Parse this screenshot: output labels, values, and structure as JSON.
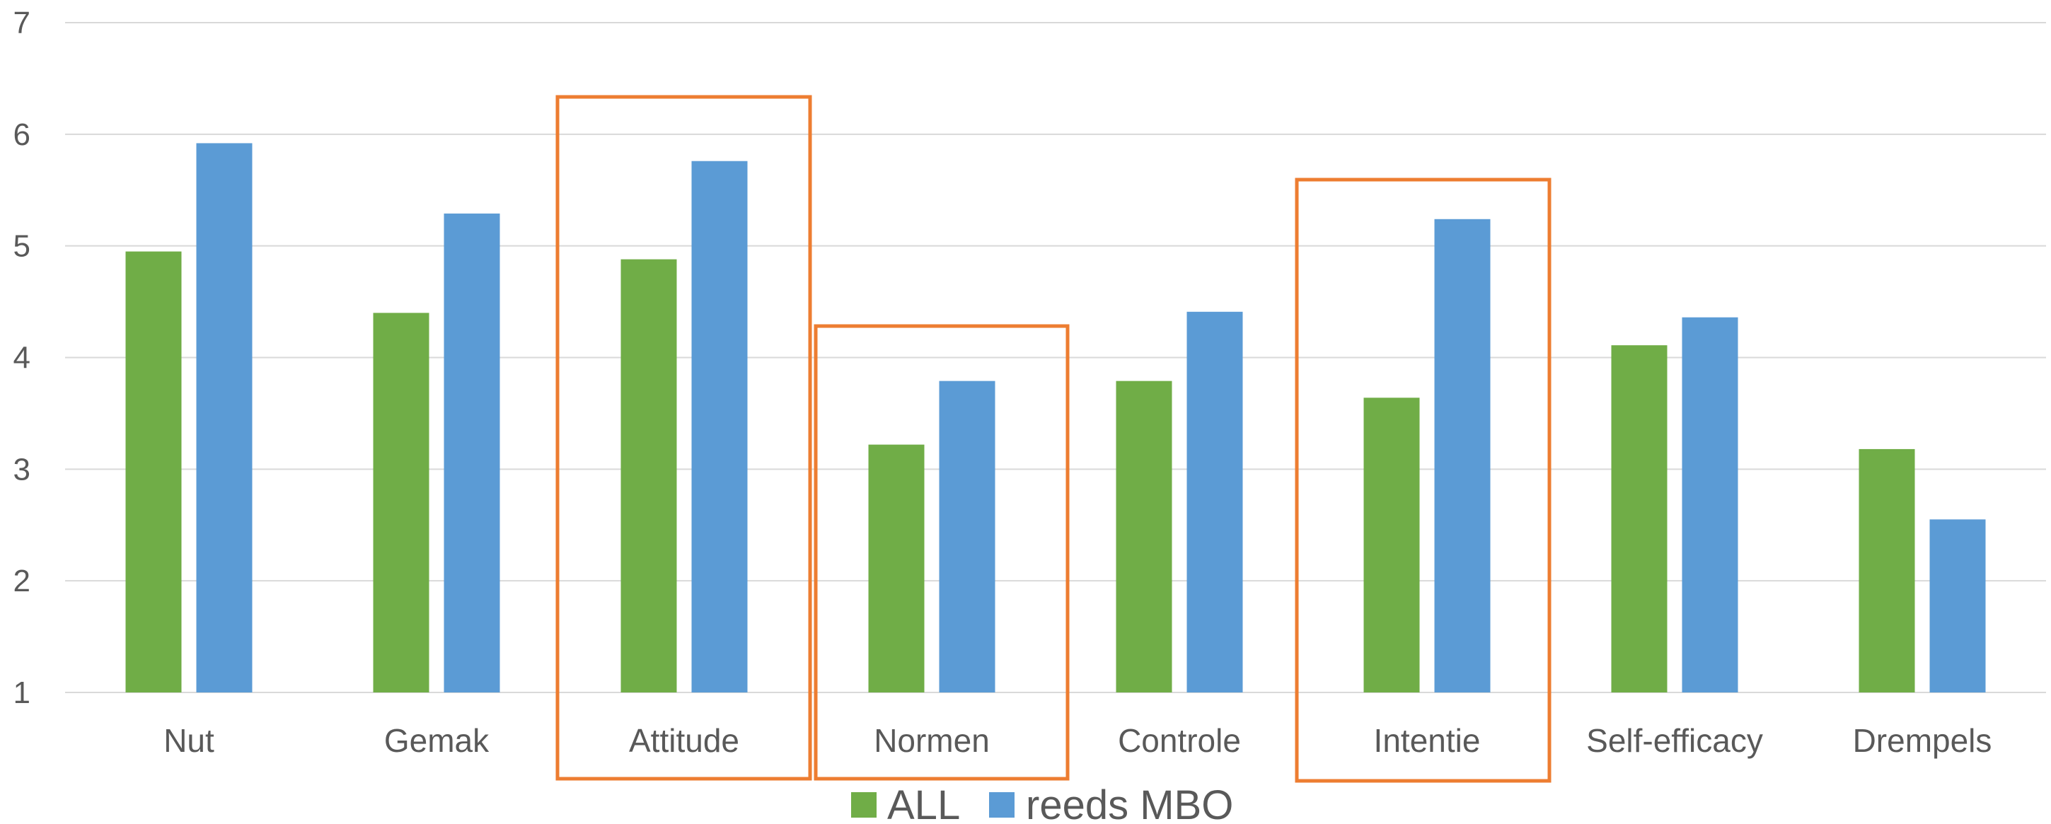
{
  "chart_data": {
    "type": "bar",
    "categories": [
      "Nut",
      "Gemak",
      "Attitude",
      "Normen",
      "Controle",
      "Intentie",
      "Self-efficacy",
      "Drempels"
    ],
    "series": [
      {
        "name": "ALL",
        "color": "#70ad47",
        "values": [
          4.95,
          4.4,
          4.88,
          3.22,
          3.79,
          3.64,
          4.11,
          3.18
        ]
      },
      {
        "name": "reeds MBO",
        "color": "#5b9bd5",
        "values": [
          5.92,
          5.29,
          5.76,
          3.79,
          4.41,
          5.24,
          4.36,
          2.55
        ]
      }
    ],
    "ylim": [
      1,
      7
    ],
    "yticks": [
      1,
      2,
      3,
      4,
      5,
      6,
      7
    ],
    "grid": true,
    "legend": "bottom-center",
    "highlighted_categories": [
      "Attitude",
      "Normen",
      "Intentie"
    ],
    "highlight_color": "#ed7d31",
    "title": "",
    "xlabel": "",
    "ylabel": ""
  }
}
